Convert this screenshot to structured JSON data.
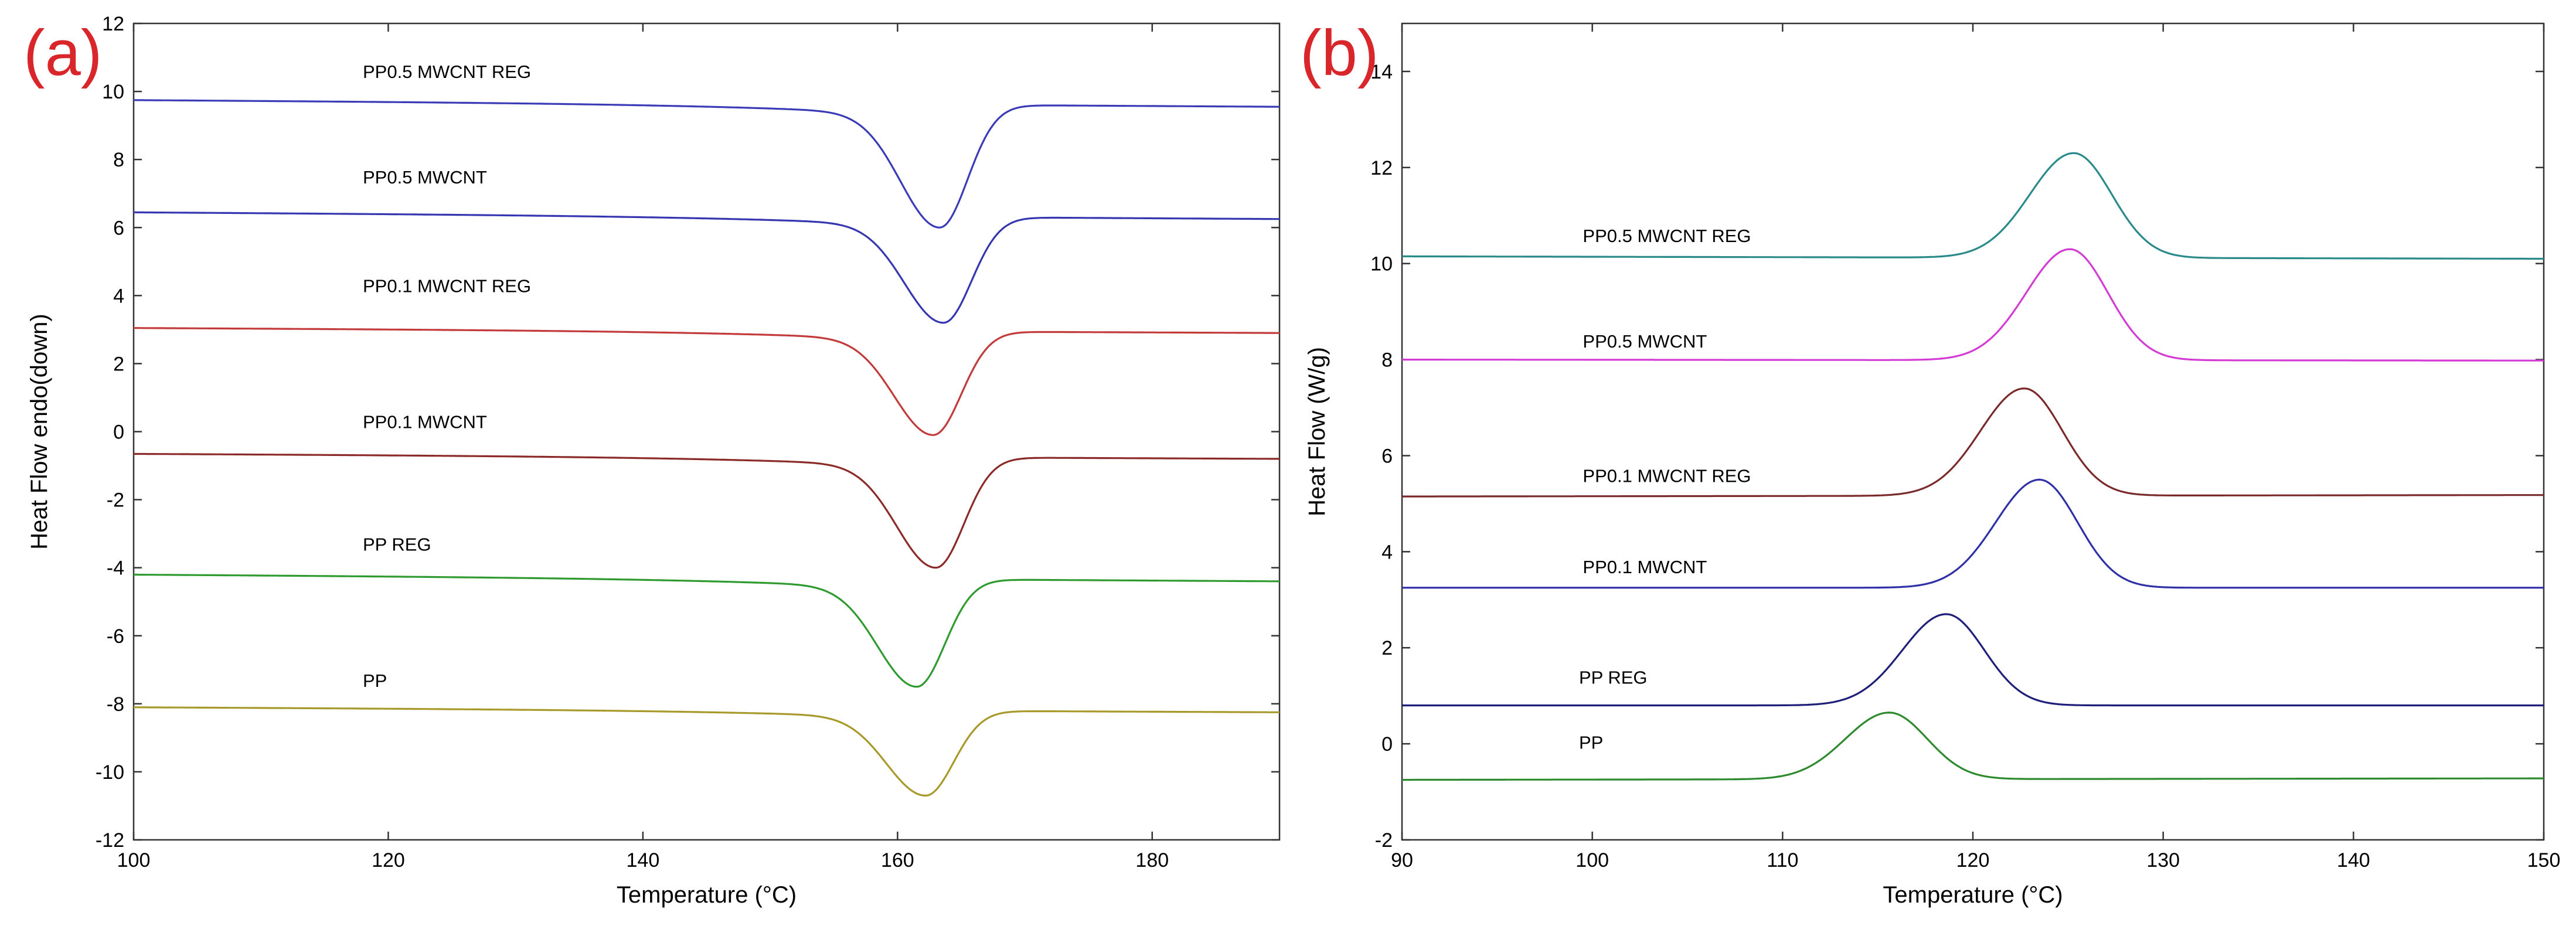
{
  "chart_data": [
    {
      "panel_label": "(a)",
      "type": "line",
      "title": "",
      "xlabel": "Temperature (°C)",
      "ylabel": "Heat Flow endo(down)",
      "xlim": [
        100,
        190
      ],
      "ylim": [
        -12,
        12
      ],
      "xticks": [
        100,
        120,
        140,
        160,
        180
      ],
      "yticks": [
        -12,
        -10,
        -8,
        -6,
        -4,
        -2,
        0,
        2,
        4,
        6,
        8,
        10,
        12
      ],
      "grid": false,
      "series": [
        {
          "name": "PP0.5 MWCNT REG",
          "color": "#3b3bb8",
          "label_x": 118,
          "label_y": 10.4,
          "baseline_start": 9.75,
          "baseline_end": 9.55,
          "peak_x": 163.3,
          "peak_y": 6.0,
          "peak_type": "min"
        },
        {
          "name": "PP0.5 MWCNT",
          "color": "#3636b0",
          "label_x": 118,
          "label_y": 7.3,
          "baseline_start": 6.45,
          "baseline_end": 6.25,
          "peak_x": 163.6,
          "peak_y": 3.2,
          "peak_type": "min"
        },
        {
          "name": "PP0.1 MWCNT REG",
          "color": "#c23a3a",
          "label_x": 118,
          "label_y": 4.1,
          "baseline_start": 3.05,
          "baseline_end": 2.9,
          "peak_x": 162.8,
          "peak_y": -0.1,
          "peak_type": "min"
        },
        {
          "name": "PP0.1 MWCNT",
          "color": "#8c2a2a",
          "label_x": 118,
          "label_y": 0.1,
          "baseline_start": -0.65,
          "baseline_end": -0.8,
          "peak_x": 163.0,
          "peak_y": -4.0,
          "peak_type": "min"
        },
        {
          "name": "PP REG",
          "color": "#2f9a2f",
          "label_x": 118,
          "label_y": -3.5,
          "baseline_start": -4.2,
          "baseline_end": -4.4,
          "peak_x": 161.5,
          "peak_y": -7.5,
          "peak_type": "min"
        },
        {
          "name": "PP",
          "color": "#a89a2a",
          "label_x": 118,
          "label_y": -7.5,
          "baseline_start": -8.1,
          "baseline_end": -8.25,
          "peak_x": 162.2,
          "peak_y": -10.7,
          "peak_type": "min"
        }
      ]
    },
    {
      "panel_label": "(b)",
      "type": "line",
      "title": "",
      "xlabel": "Temperature (°C)",
      "ylabel": "Heat Flow (W/g)",
      "xlim": [
        90,
        150
      ],
      "ylim": [
        -2,
        15
      ],
      "xticks": [
        90,
        100,
        110,
        120,
        130,
        140,
        150
      ],
      "yticks": [
        -2,
        0,
        2,
        4,
        6,
        8,
        10,
        12,
        14
      ],
      "grid": false,
      "series": [
        {
          "name": "PP0.5 MWCNT REG",
          "color": "#2a8a8a",
          "label_x": 99.5,
          "label_y": 10.45,
          "baseline_start": 10.15,
          "baseline_end": 10.1,
          "peak_x": 125.3,
          "peak_y": 12.3,
          "peak_type": "max"
        },
        {
          "name": "PP0.5 MWCNT",
          "color": "#d43bd4",
          "label_x": 99.5,
          "label_y": 8.25,
          "baseline_start": 8.0,
          "baseline_end": 7.98,
          "peak_x": 125.1,
          "peak_y": 10.3,
          "peak_type": "max"
        },
        {
          "name": "PP0.1 MWCNT REG",
          "color": "#7a2a2a",
          "label_x": 99.5,
          "label_y": 5.45,
          "baseline_start": 5.15,
          "baseline_end": 5.18,
          "peak_x": 122.7,
          "peak_y": 7.4,
          "peak_type": "max"
        },
        {
          "name": "PP0.1 MWCNT",
          "color": "#2f2fa8",
          "label_x": 99.5,
          "label_y": 3.55,
          "baseline_start": 3.25,
          "baseline_end": 3.25,
          "peak_x": 123.5,
          "peak_y": 5.5,
          "peak_type": "max"
        },
        {
          "name": "PP REG",
          "color": "#1f1f7a",
          "label_x": 99.3,
          "label_y": 1.25,
          "baseline_start": 0.8,
          "baseline_end": 0.8,
          "peak_x": 118.6,
          "peak_y": 2.7,
          "peak_type": "max"
        },
        {
          "name": "PP",
          "color": "#2e8a2e",
          "label_x": 99.3,
          "label_y": -0.1,
          "baseline_start": -0.75,
          "baseline_end": -0.72,
          "peak_x": 115.6,
          "peak_y": 0.65,
          "peak_type": "max"
        }
      ]
    }
  ]
}
